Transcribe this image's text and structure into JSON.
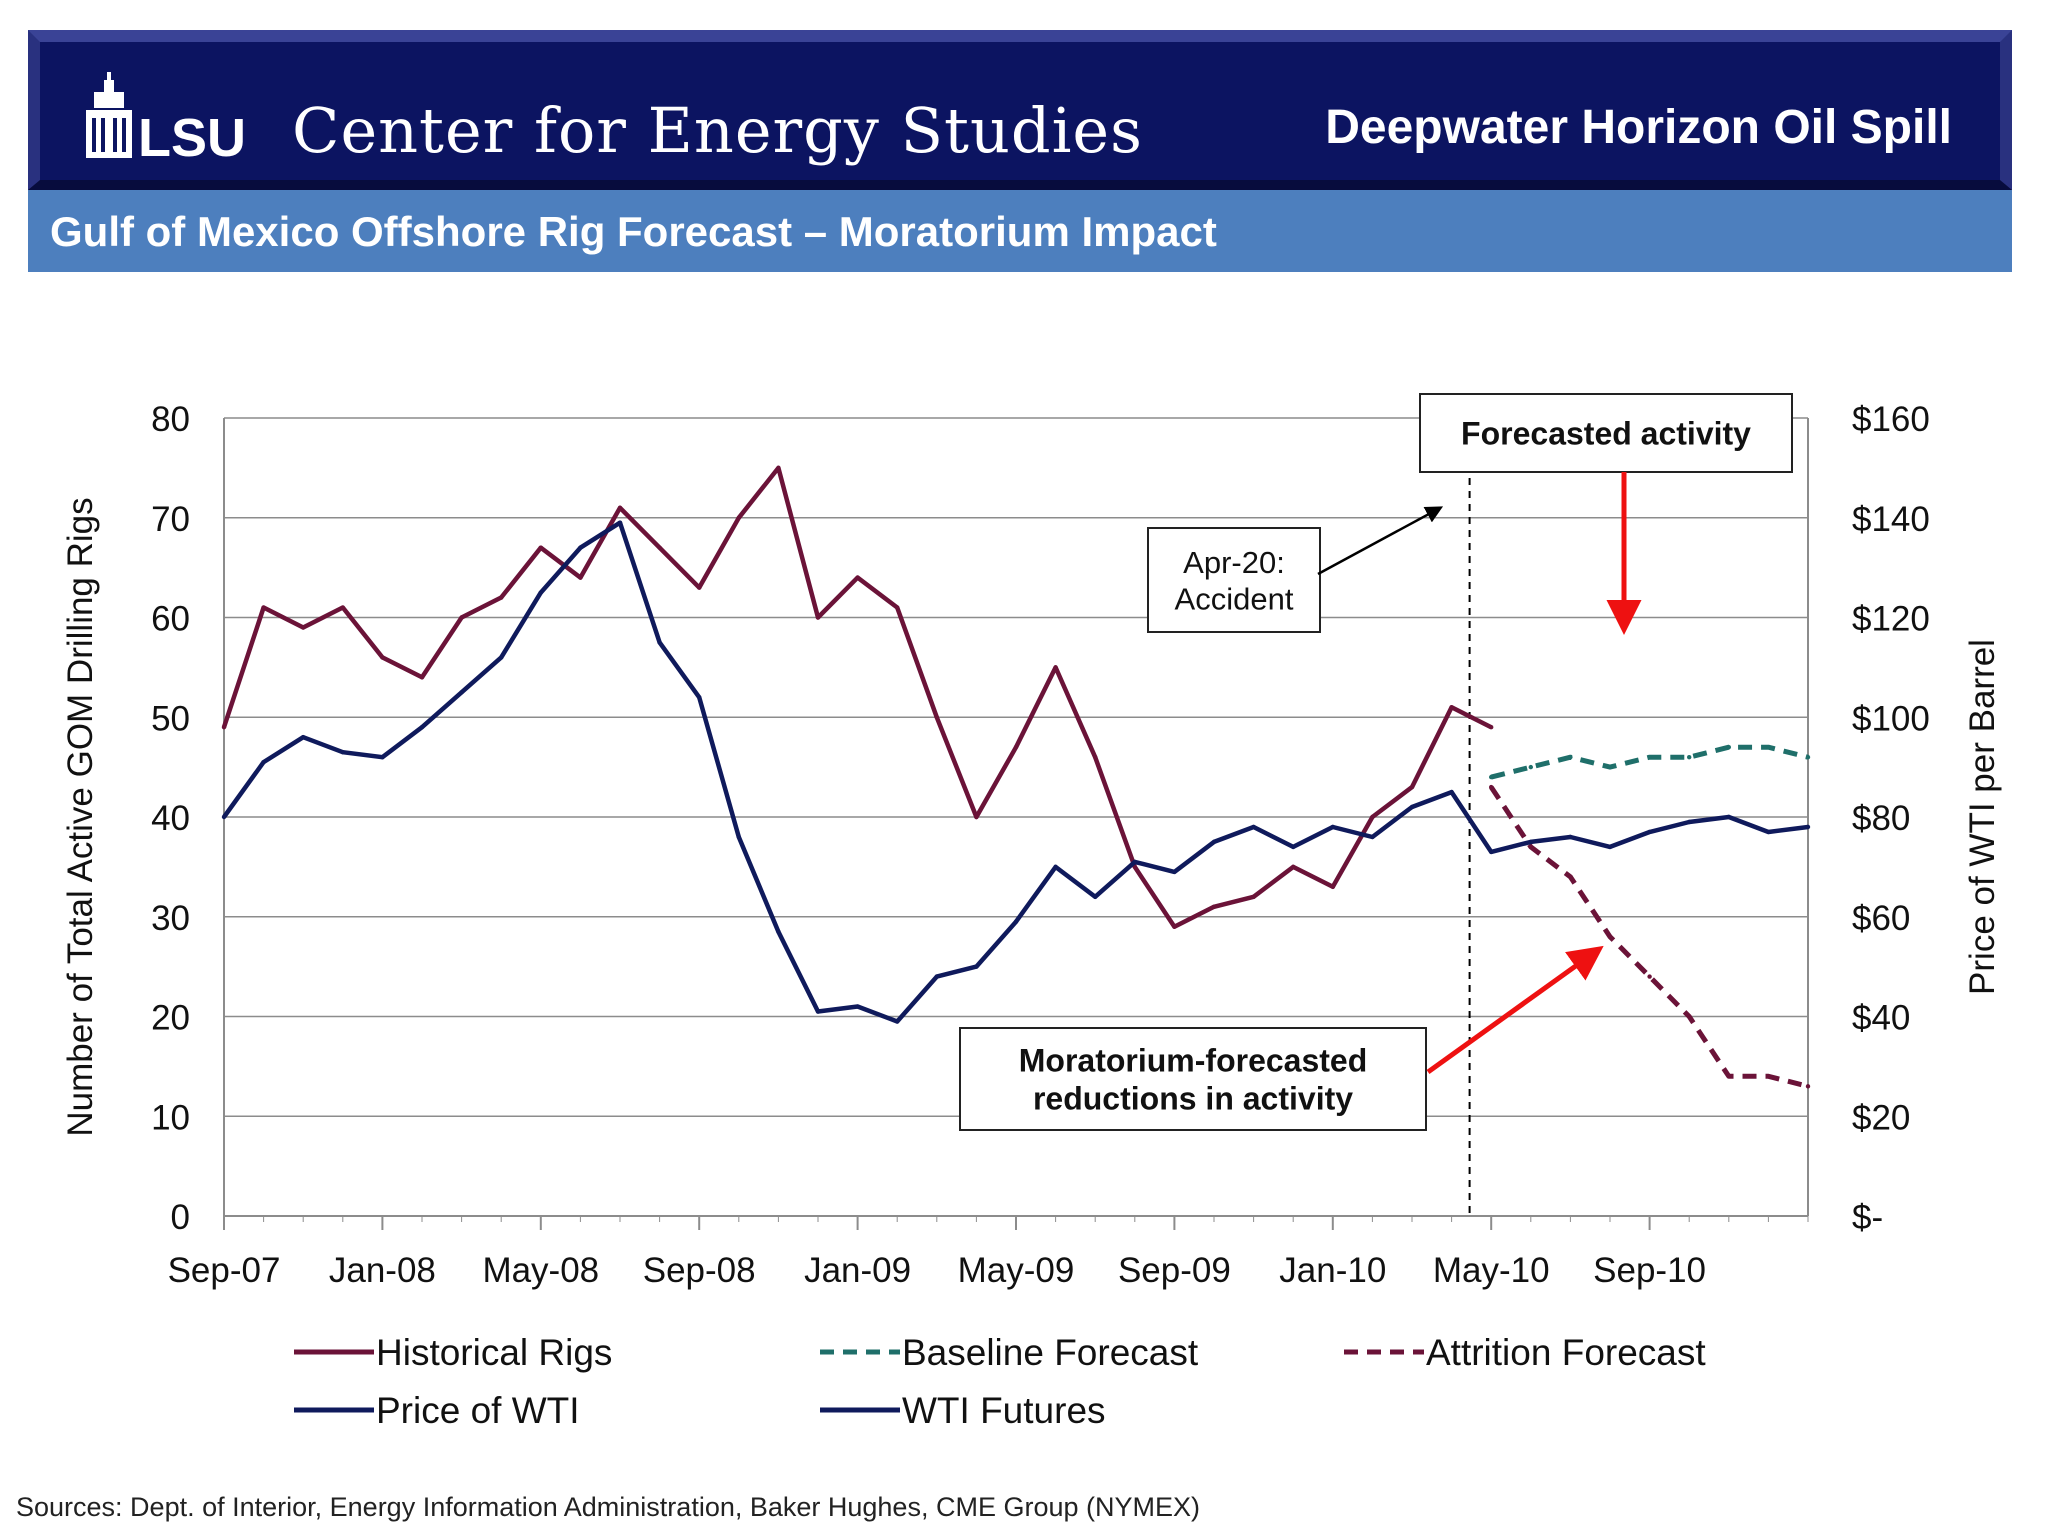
{
  "header": {
    "logo_text": "LSU",
    "org_name": "Center for Energy Studies",
    "title": "Deepwater Horizon Oil Spill",
    "subtitle": "Gulf of Mexico Offshore Rig Forecast – Moratorium Impact"
  },
  "sources": "Sources: Dept. of Interior, Energy Information Administration, Baker Hughes, CME Group (NYMEX)",
  "colors": {
    "banner": "#0c1461",
    "subbar": "#4d7fbe",
    "historical_rigs": "#6b1338",
    "attrition_forecast": "#6b1338",
    "baseline_forecast": "#1f6f6a",
    "wti": "#0f1a5c",
    "annotation_arrow": "#ee1111"
  },
  "chart_data": {
    "type": "line",
    "xlabel": "",
    "ylabel": "Number of Total Active GOM Drilling Rigs",
    "y2label": "Price of WTI per Barrel",
    "ylim": [
      0,
      80
    ],
    "y2lim": [
      0,
      160
    ],
    "yticks": [
      "80",
      "70",
      "60",
      "50",
      "40",
      "30",
      "20",
      "10",
      "0"
    ],
    "y2ticks": [
      "$160",
      "$140",
      "$120",
      "$100",
      "$80",
      "$60",
      "$40",
      "$20",
      "$-"
    ],
    "xticks": [
      "Sep-07",
      "Jan-08",
      "May-08",
      "Sep-08",
      "Jan-09",
      "May-09",
      "Sep-09",
      "Jan-10",
      "May-10",
      "Sep-10"
    ],
    "xlim": [
      "2007-09",
      "2011-01"
    ],
    "grid": true,
    "legend_position": "bottom",
    "legend": [
      {
        "label": "Historical Rigs",
        "style": "solid",
        "color": "#6b1338"
      },
      {
        "label": "Baseline Forecast",
        "style": "dashed",
        "color": "#1f6f6a"
      },
      {
        "label": "Attrition Forecast",
        "style": "dashed",
        "color": "#6b1338"
      },
      {
        "label": "Price of WTI",
        "style": "solid",
        "color": "#0f1a5c"
      },
      {
        "label": "WTI Futures",
        "style": "solid",
        "color": "#0f1a5c"
      }
    ],
    "series": [
      {
        "name": "Historical Rigs",
        "axis": "left",
        "x": [
          "2007-09",
          "2007-10",
          "2007-11",
          "2007-12",
          "2008-01",
          "2008-02",
          "2008-03",
          "2008-04",
          "2008-05",
          "2008-06",
          "2008-07",
          "2008-08",
          "2008-09",
          "2008-10",
          "2008-11",
          "2008-12",
          "2009-01",
          "2009-02",
          "2009-03",
          "2009-04",
          "2009-05",
          "2009-06",
          "2009-07",
          "2009-08",
          "2009-09",
          "2009-10",
          "2009-11",
          "2009-12",
          "2010-01",
          "2010-02",
          "2010-03",
          "2010-04",
          "2010-05"
        ],
        "y": [
          49,
          61,
          59,
          61,
          56,
          54,
          60,
          62,
          67,
          64,
          71,
          67,
          63,
          70,
          75,
          60,
          64,
          61,
          50,
          40,
          47,
          55,
          46,
          35,
          29,
          31,
          32,
          35,
          33,
          40,
          43,
          51,
          49
        ]
      },
      {
        "name": "Baseline Forecast",
        "axis": "left",
        "x": [
          "2010-05",
          "2010-06",
          "2010-07",
          "2010-08",
          "2010-09",
          "2010-10",
          "2010-11",
          "2010-12",
          "2011-01"
        ],
        "y": [
          44,
          45,
          46,
          45,
          46,
          46,
          47,
          47,
          46
        ]
      },
      {
        "name": "Attrition Forecast",
        "axis": "left",
        "x": [
          "2010-05",
          "2010-06",
          "2010-07",
          "2010-08",
          "2010-09",
          "2010-10",
          "2010-11",
          "2010-12",
          "2011-01"
        ],
        "y": [
          43,
          37,
          34,
          28,
          24,
          20,
          14,
          14,
          13
        ]
      },
      {
        "name": "Price of WTI",
        "axis": "right",
        "x": [
          "2007-09",
          "2007-10",
          "2007-11",
          "2007-12",
          "2008-01",
          "2008-02",
          "2008-03",
          "2008-04",
          "2008-05",
          "2008-06",
          "2008-07",
          "2008-08",
          "2008-09",
          "2008-10",
          "2008-11",
          "2008-12",
          "2009-01",
          "2009-02",
          "2009-03",
          "2009-04",
          "2009-05",
          "2009-06",
          "2009-07",
          "2009-08",
          "2009-09",
          "2009-10",
          "2009-11",
          "2009-12",
          "2010-01",
          "2010-02",
          "2010-03",
          "2010-04",
          "2010-05"
        ],
        "y": [
          80,
          91,
          96,
          93,
          92,
          98,
          105,
          112,
          125,
          134,
          139,
          115,
          104,
          76,
          57,
          41,
          42,
          39,
          48,
          50,
          59,
          70,
          64,
          71,
          69,
          75,
          78,
          74,
          78,
          76,
          82,
          85,
          73
        ]
      },
      {
        "name": "WTI Futures",
        "axis": "right",
        "x": [
          "2010-05",
          "2010-06",
          "2010-07",
          "2010-08",
          "2010-09",
          "2010-10",
          "2010-11",
          "2010-12",
          "2011-01"
        ],
        "y": [
          73,
          75,
          76,
          74,
          77,
          79,
          80,
          77,
          78
        ]
      }
    ],
    "annotations": [
      {
        "text": [
          "Apr-20:",
          "Accident"
        ],
        "at": "2010-04"
      },
      {
        "text": [
          "Forecasted activity"
        ]
      },
      {
        "text": [
          "Moratorium-forecasted",
          "reductions in activity"
        ]
      }
    ]
  }
}
